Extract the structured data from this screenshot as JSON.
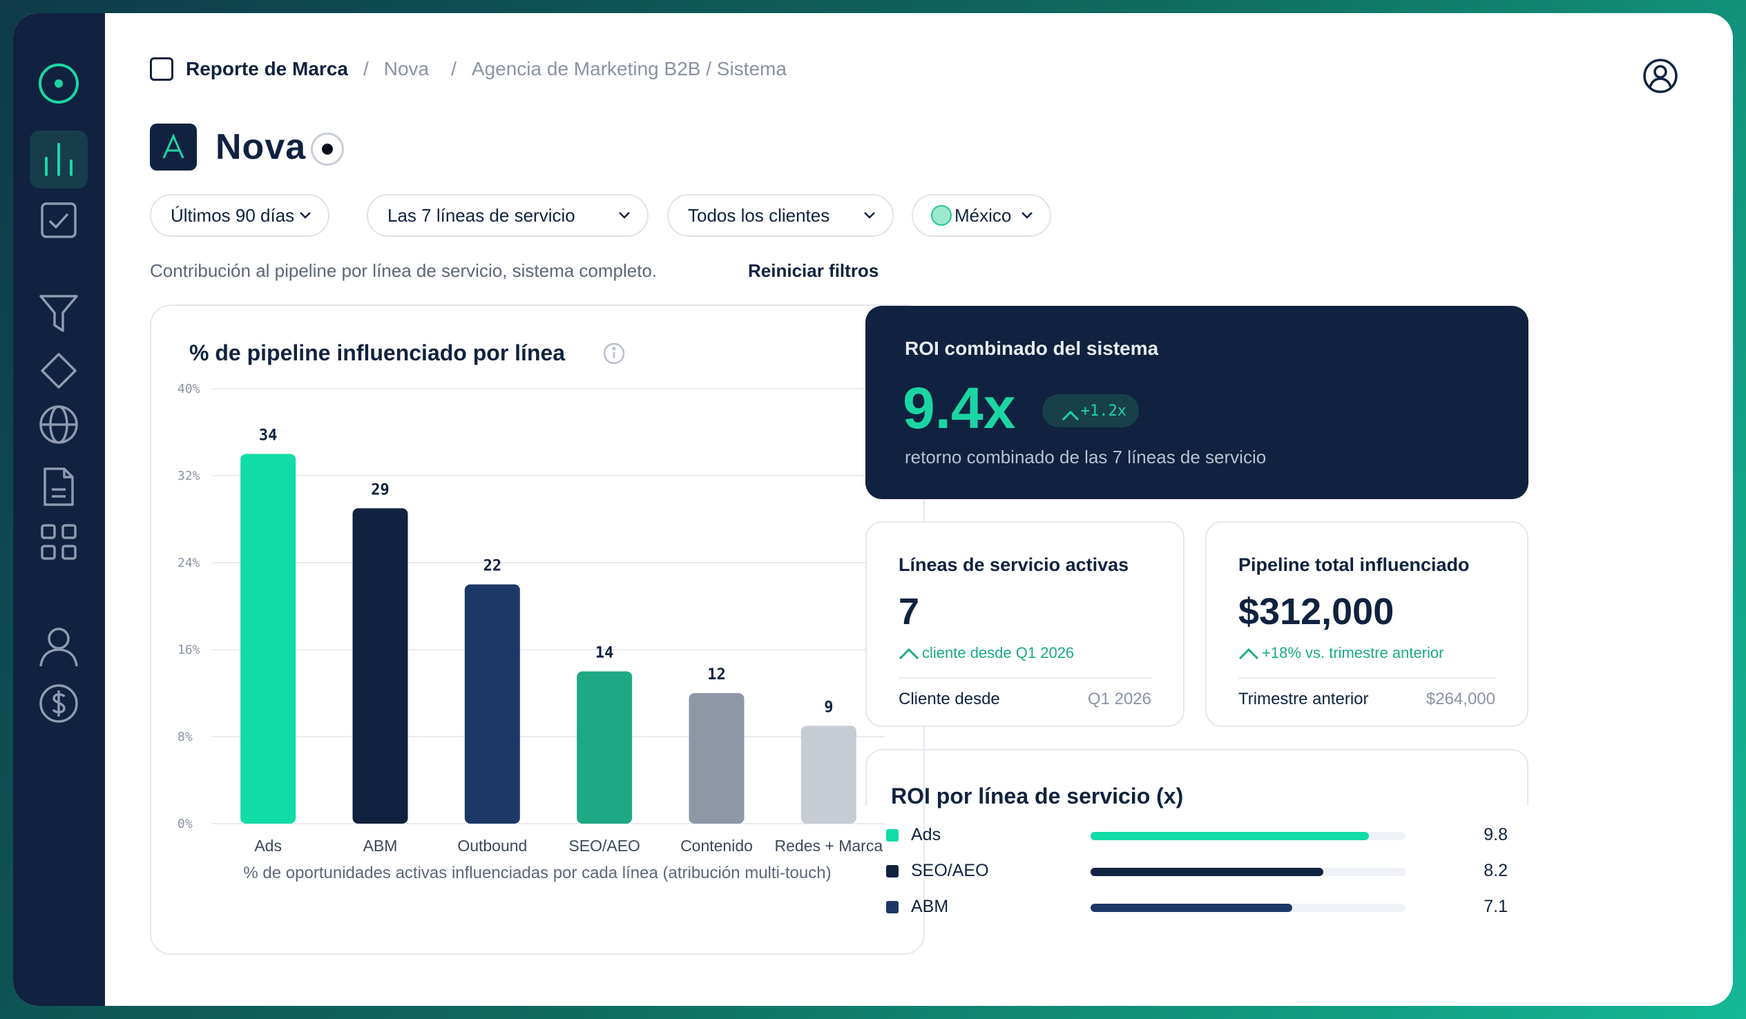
{
  "breadcrumb": {
    "root": "Reporte de Marca",
    "items": [
      "Nova",
      "Agencia de Marketing B2B / Sistema"
    ],
    "separator": "/"
  },
  "header": {
    "logo_letter": "A",
    "title": "Nova"
  },
  "filters": [
    {
      "label": "Últimos 90 días"
    },
    {
      "label": "Las 7 líneas de servicio"
    },
    {
      "label": "Todos los clientes"
    },
    {
      "label": "México"
    }
  ],
  "subtitle": "Contribución al pipeline por línea de servicio, sistema completo.",
  "reset_label": "Reiniciar filtros",
  "chart_card": {
    "title": "% de pipeline influenciado por línea",
    "caption": "% de oportunidades activas influenciadas por cada línea (atribución multi-touch)"
  },
  "chart_data": {
    "type": "bar",
    "title": "% de pipeline influenciado por línea",
    "categories": [
      "Ads",
      "ABM",
      "Outbound",
      "SEO/AEO",
      "Contenido",
      "Redes + Marca"
    ],
    "values": [
      34,
      29,
      22,
      14,
      12,
      9
    ],
    "colors": [
      "#12dca6",
      "#10223f",
      "#1d3867",
      "#1ea884",
      "#8e97a6",
      "#c7ccd4"
    ],
    "ylim": [
      0,
      40
    ],
    "yticks": [
      "0%",
      "8%",
      "16%",
      "24%",
      "32%",
      "40%"
    ],
    "ytick_values": [
      0,
      8,
      16,
      24,
      32,
      40
    ],
    "xlabel": "% de oportunidades activas influenciadas por cada línea (atribución multi-touch)",
    "ylabel": "",
    "grid": true
  },
  "roi": {
    "title": "ROI combinado del sistema",
    "value": "9.4x",
    "badge": "+1.2x",
    "subtitle": "retorno combinado de las 7 líneas de servicio"
  },
  "stats": [
    {
      "title": "Líneas de servicio activas",
      "value": "7",
      "delta": "cliente desde Q1 2026",
      "foot_label": "Cliente desde",
      "foot_value": "Q1 2026"
    },
    {
      "title": "Pipeline total influenciado",
      "value": "$312,000",
      "delta": "+18% vs. trimestre anterior",
      "foot_label": "Trimestre anterior",
      "foot_value": "$264,000"
    }
  ],
  "roi_by_line": {
    "title": "ROI por línea de servicio (x)",
    "max": 11.1,
    "rows": [
      {
        "label": "Ads",
        "value": 9.8,
        "display": "9.8",
        "color": "#12dca6"
      },
      {
        "label": "SEO/AEO",
        "value": 8.2,
        "display": "8.2",
        "color": "#10223f"
      },
      {
        "label": "ABM",
        "value": 7.1,
        "display": "7.1",
        "color": "#1d3867"
      }
    ]
  },
  "colors": {
    "accent": "#12dca6",
    "navy": "#10223f"
  }
}
